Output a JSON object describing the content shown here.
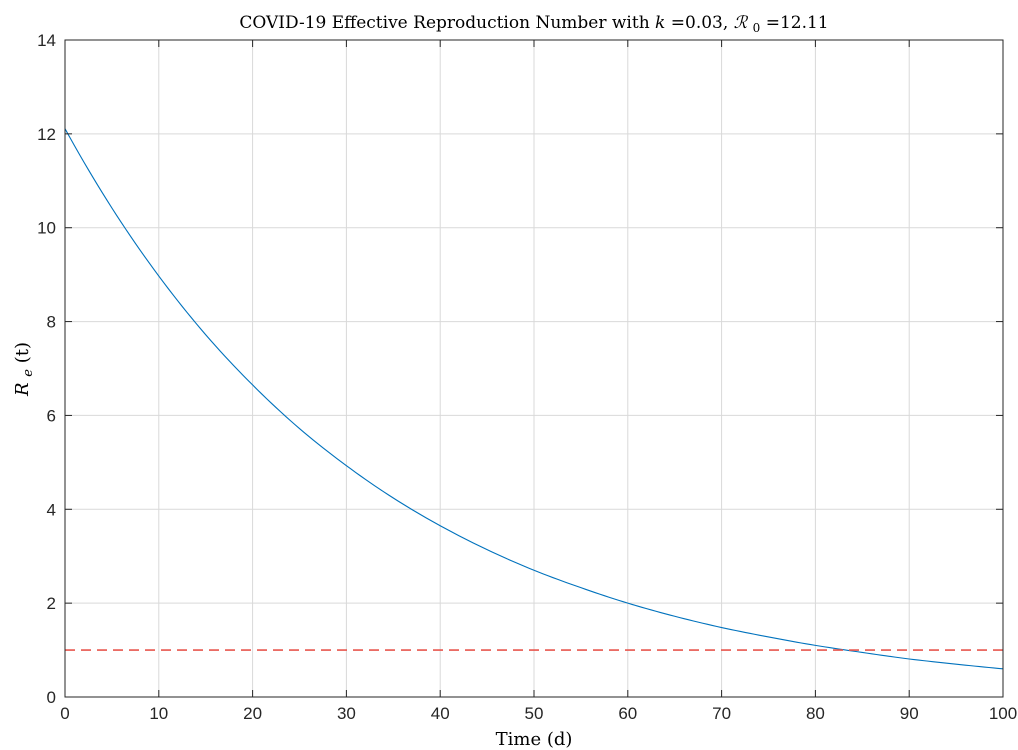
{
  "chart_data": {
    "type": "line",
    "title_prefix": "COVID-19 Effective Reproduction Number with ",
    "title_k_symbol": "k",
    "title_k_value": "=0.03, ",
    "title_r0_symbol": "ℛ",
    "title_r0_sub": "0",
    "title_r0_value": " =12.11",
    "xlabel": "Time (d)",
    "ylabel_main": "R",
    "ylabel_sub": "e",
    "ylabel_args": "(t)",
    "xlim": [
      0,
      100
    ],
    "ylim": [
      0,
      14
    ],
    "xticks": [
      0,
      10,
      20,
      30,
      40,
      50,
      60,
      70,
      80,
      90,
      100
    ],
    "yticks": [
      0,
      2,
      4,
      6,
      8,
      10,
      12,
      14
    ],
    "grid": true,
    "series": [
      {
        "color": "#0072BD",
        "style": "solid",
        "x": [
          0,
          5,
          10,
          15,
          20,
          25,
          30,
          35,
          40,
          45,
          50,
          55,
          60,
          65,
          70,
          75,
          80,
          85,
          90,
          95,
          100
        ],
        "y": [
          12.11,
          10.42,
          8.97,
          7.72,
          6.65,
          5.72,
          4.93,
          4.24,
          3.65,
          3.14,
          2.7,
          2.33,
          2.0,
          1.72,
          1.48,
          1.28,
          1.1,
          0.95,
          0.81,
          0.7,
          0.6
        ]
      },
      {
        "color": "#E8574F",
        "style": "dashed",
        "x": [
          0,
          100
        ],
        "y": [
          1,
          1
        ]
      }
    ]
  }
}
